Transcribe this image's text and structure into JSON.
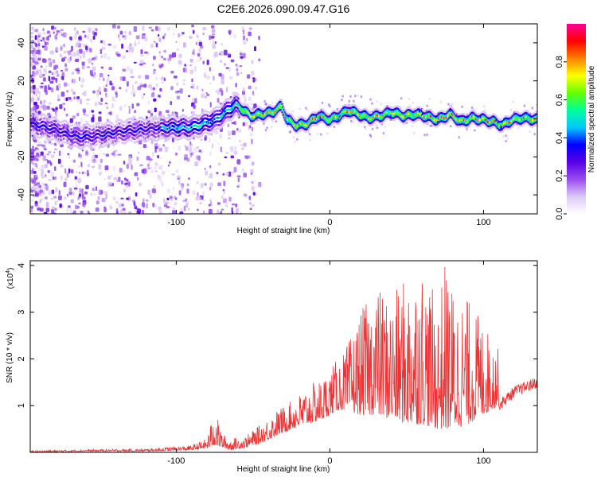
{
  "title": "C2E6.2026.090.09.47.G16",
  "chart_data": [
    {
      "type": "heatmap",
      "xlabel": "Height of straight line (km)",
      "ylabel": "Frequency (Hz)",
      "xlim": [
        -195,
        135
      ],
      "ylim": [
        -50,
        50
      ],
      "x_ticks": [
        -100,
        0,
        100
      ],
      "x_tick_labels": [
        "-100",
        "0",
        "100"
      ],
      "y_ticks": [
        -40,
        -20,
        0,
        20,
        40
      ],
      "y_tick_labels": [
        "-40",
        "-20",
        "0",
        "20",
        "40"
      ],
      "ridge": {
        "x": [
          -195,
          -180,
          -165,
          -150,
          -135,
          -120,
          -105,
          -90,
          -75,
          -62,
          -58,
          -52,
          -45,
          -38,
          -32,
          -28,
          -22,
          -15,
          -8,
          0,
          5,
          12,
          18,
          25,
          32,
          40,
          48,
          55,
          62,
          70,
          78,
          85,
          92,
          100,
          106,
          112,
          118,
          125,
          135
        ],
        "freq": [
          -2,
          -5,
          -9,
          -8,
          -6,
          -5,
          -4,
          -4,
          0,
          8,
          6,
          2,
          3,
          4,
          7,
          0,
          -3,
          -2,
          2,
          0,
          2,
          5,
          3,
          1,
          2,
          4,
          2,
          3,
          2,
          0,
          3,
          -1,
          1,
          0,
          -1,
          -3,
          0,
          1,
          0
        ]
      },
      "colorbar": {
        "label": "Normalized spectral amplitude",
        "range": [
          0.0,
          1.0
        ],
        "ticks": [
          0.0,
          0.2,
          0.4,
          0.6,
          0.8
        ],
        "tick_labels": [
          "0.0",
          "0.2",
          "0.4",
          "0.6",
          "0.8"
        ],
        "colormap": [
          "#ffffff",
          "#dcc8f5",
          "#9a4df0",
          "#5a00e6",
          "#0000ff",
          "#00c8ff",
          "#00ff9a",
          "#64ff00",
          "#ffff00",
          "#ff8000",
          "#ff0000",
          "#ff0096"
        ]
      }
    },
    {
      "type": "line",
      "xlabel": "Height of straight line (km)",
      "ylabel": "SNR (10 * v/v)",
      "y_scale_label": "(x10",
      "y_scale_exponent": "4",
      "y_scale_suffix": ")",
      "xlim": [
        -195,
        135
      ],
      "ylim": [
        0,
        4.1
      ],
      "x_ticks": [
        -100,
        0,
        100
      ],
      "x_tick_labels": [
        "-100",
        "0",
        "100"
      ],
      "y_ticks": [
        1,
        2,
        3,
        4
      ],
      "y_tick_labels": [
        "1",
        "2",
        "3",
        "4"
      ],
      "color": "#f03232",
      "envelope": {
        "x": [
          -195,
          -160,
          -120,
          -90,
          -80,
          -75,
          -70,
          -65,
          -55,
          -45,
          -35,
          -25,
          -15,
          -5,
          0,
          5,
          10,
          20,
          30,
          40,
          50,
          60,
          70,
          75,
          80,
          90,
          100,
          110,
          120,
          135
        ],
        "base": [
          0.0,
          0.02,
          0.02,
          0.05,
          0.08,
          0.15,
          0.1,
          0.05,
          0.1,
          0.2,
          0.35,
          0.5,
          0.6,
          0.7,
          0.8,
          0.9,
          0.9,
          0.8,
          0.8,
          0.7,
          0.6,
          0.6,
          0.5,
          0.5,
          0.5,
          0.6,
          0.8,
          1.0,
          1.3,
          1.5
        ],
        "peak": [
          0.04,
          0.06,
          0.08,
          0.15,
          0.3,
          0.95,
          0.4,
          0.3,
          0.35,
          0.6,
          0.9,
          1.1,
          1.4,
          1.6,
          1.8,
          2.0,
          2.2,
          3.0,
          3.6,
          3.3,
          3.8,
          4.1,
          3.2,
          4.1,
          3.6,
          3.3,
          2.8,
          2.2,
          1.9,
          1.6
        ]
      }
    }
  ]
}
